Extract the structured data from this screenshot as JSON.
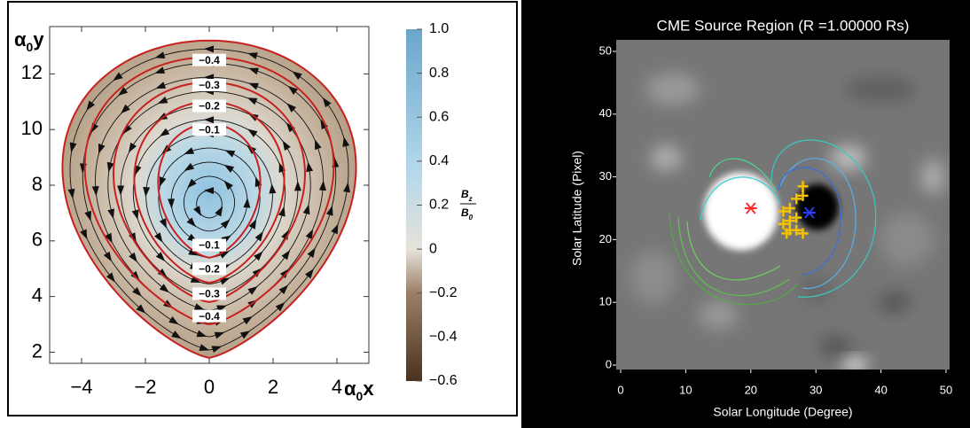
{
  "chart_data": [
    {
      "type": "contour",
      "x_label": {
        "base": "α",
        "sub": "0",
        "rest": "x"
      },
      "y_label": {
        "base": "α",
        "sub": "0",
        "rest": "y"
      },
      "xlim": [
        -5,
        5
      ],
      "ylim": [
        1.6,
        13.7
      ],
      "xticks": [
        {
          "value": -4,
          "label": "−4"
        },
        {
          "value": -2,
          "label": "−2"
        },
        0,
        2,
        4
      ],
      "yticks": [
        2,
        4,
        6,
        8,
        10,
        12
      ],
      "contour_color": "#c8201e",
      "contour_levels": [
        {
          "value": -0.4,
          "label": "−0.4"
        },
        {
          "value": -0.3,
          "label": "−0.3"
        },
        {
          "value": -0.2,
          "label": "−0.2"
        },
        {
          "value": -0.1,
          "label": "−0.1"
        }
      ],
      "colorbar_label": {
        "numerator": {
          "base": "B",
          "sub": "z"
        },
        "denominator": {
          "base": "B",
          "sub": "0"
        }
      },
      "clim": [
        -0.6,
        1.0
      ],
      "cticks": [
        {
          "value": 1,
          "label": "1.0"
        },
        0.8,
        0.6,
        0.4,
        0.2,
        0,
        {
          "value": -0.2,
          "label": "−0.2"
        },
        {
          "value": -0.4,
          "label": "−0.4"
        },
        {
          "value": -0.6,
          "label": "−0.6"
        }
      ]
    },
    {
      "type": "image",
      "title": "CME Source Region (R =1.00000 Rs)",
      "x_label": "Solar Longitude (Degree)",
      "y_label": "Solar Latitude (Pixel)",
      "xlim": [
        0,
        50
      ],
      "ylim": [
        0,
        50
      ],
      "xticks": [
        0,
        10,
        20,
        30,
        40,
        50
      ],
      "yticks": [
        0,
        10,
        20,
        30,
        40,
        50
      ],
      "markers": {
        "x": [
          20,
          29
        ],
        "y": [
          25,
          24.3
        ],
        "colors": [
          "#ff2a2a",
          "#2a3cff"
        ]
      },
      "crosses": {
        "color": "#f2c200",
        "x": [
          25,
          25,
          26,
          26,
          27,
          27,
          28,
          28,
          26,
          27,
          28,
          25.5
        ],
        "y": [
          24.5,
          22.5,
          25,
          21.5,
          26.5,
          21.5,
          28.5,
          27,
          23,
          23.5,
          21,
          21
        ]
      }
    }
  ]
}
